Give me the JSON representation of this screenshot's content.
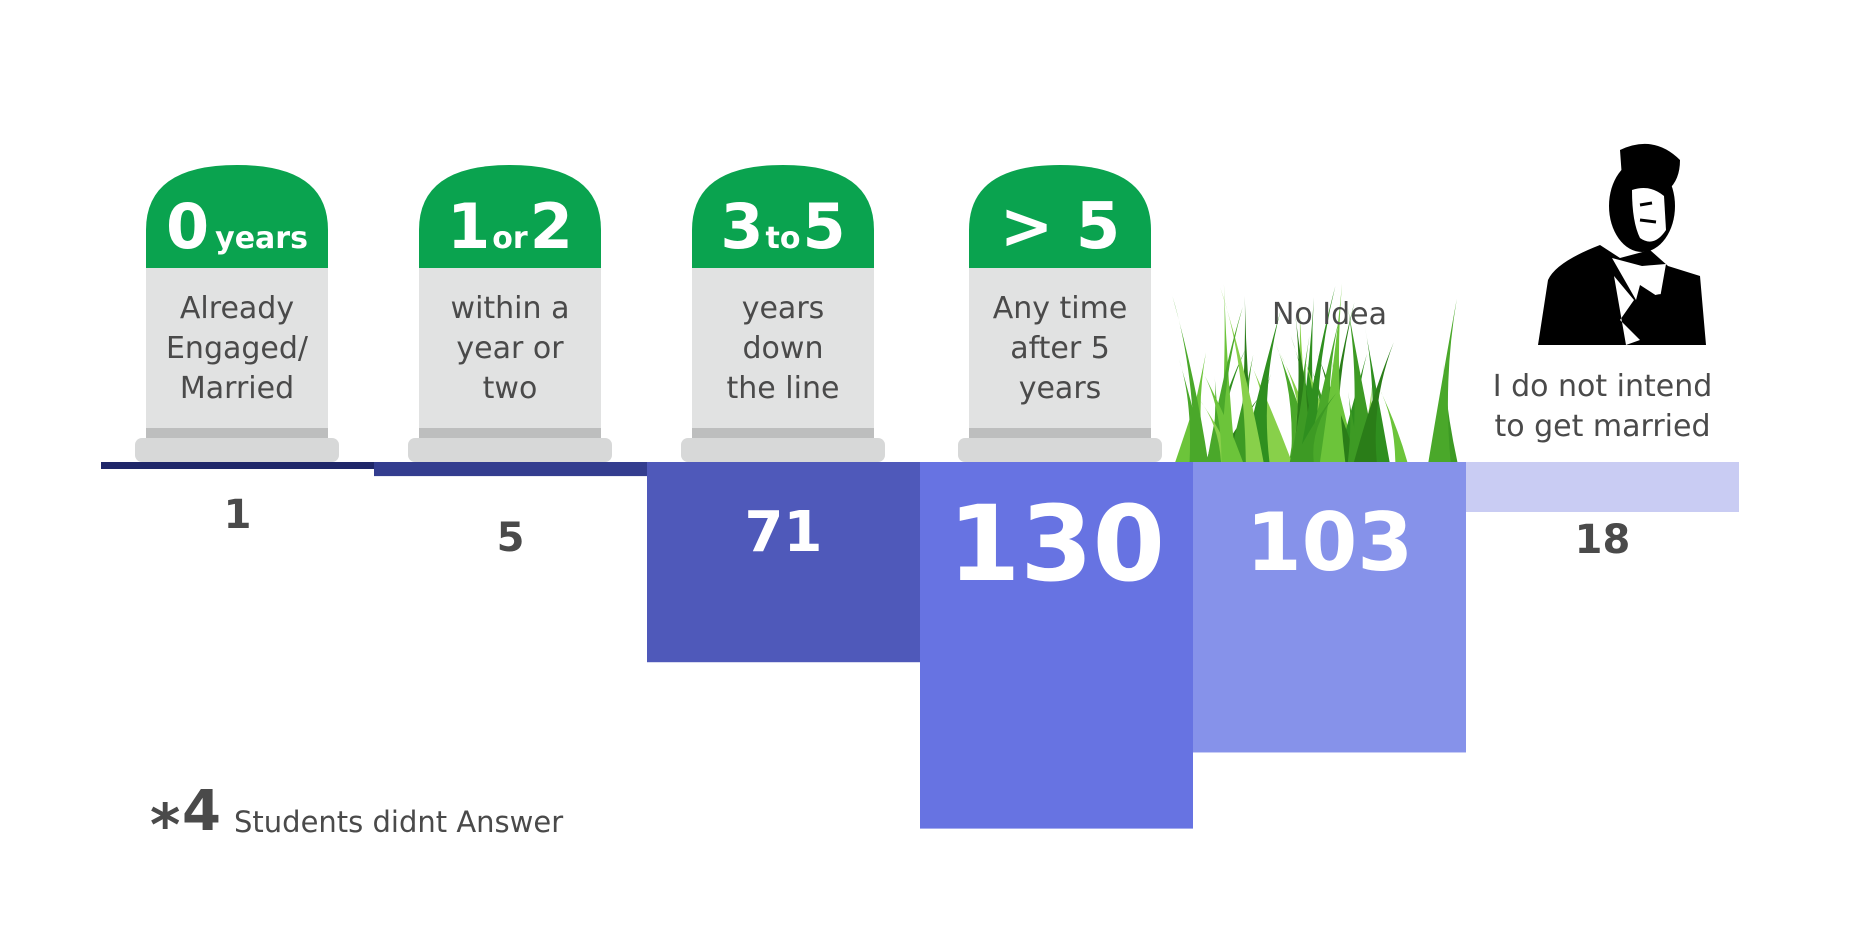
{
  "chart_data": {
    "type": "bar",
    "categories": [
      {
        "heading_main": "0",
        "heading_join": "years",
        "heading_end": "",
        "description": [
          "Already",
          "Engaged/",
          "Married"
        ]
      },
      {
        "heading_main": "1",
        "heading_join": "or",
        "heading_end": "2",
        "description": [
          "within a",
          "year or",
          "two"
        ]
      },
      {
        "heading_main": "3",
        "heading_join": "to",
        "heading_end": "5",
        "description": [
          "years",
          "down",
          "the line"
        ]
      },
      {
        "heading_main": "> 5",
        "heading_join": "",
        "heading_end": "",
        "description": [
          "Any time",
          "after 5",
          "years"
        ]
      },
      {
        "heading_main": "",
        "heading_join": "",
        "heading_end": "",
        "description": [
          "No Idea"
        ]
      },
      {
        "heading_main": "",
        "heading_join": "",
        "heading_end": "",
        "description": [
          "I do not intend",
          "to get married"
        ]
      }
    ],
    "values": [
      1,
      5,
      71,
      130,
      103,
      18
    ],
    "value_labels": [
      "1",
      "5",
      "71",
      "130",
      "103",
      "18"
    ],
    "bar_colors": [
      "#1f2769",
      "#333d8f",
      "#4f59ba",
      "#6773e2",
      "#8692ea",
      "#c9ccf3"
    ],
    "value_label_colors": [
      "#4a4a4a",
      "#4a4a4a",
      "#ffffff",
      "#ffffff",
      "#ffffff",
      "#4a4a4a"
    ],
    "orientation": "downward",
    "icons": [
      "milestone-icon",
      "milestone-icon",
      "milestone-icon",
      "milestone-icon",
      "grass-icon",
      "man-portrait-icon"
    ]
  },
  "note": {
    "star": "*",
    "number": "4",
    "text": "Students didnt Answer"
  },
  "colors": {
    "stone_top": "#0aa34f",
    "text": "#4a4a4a"
  }
}
